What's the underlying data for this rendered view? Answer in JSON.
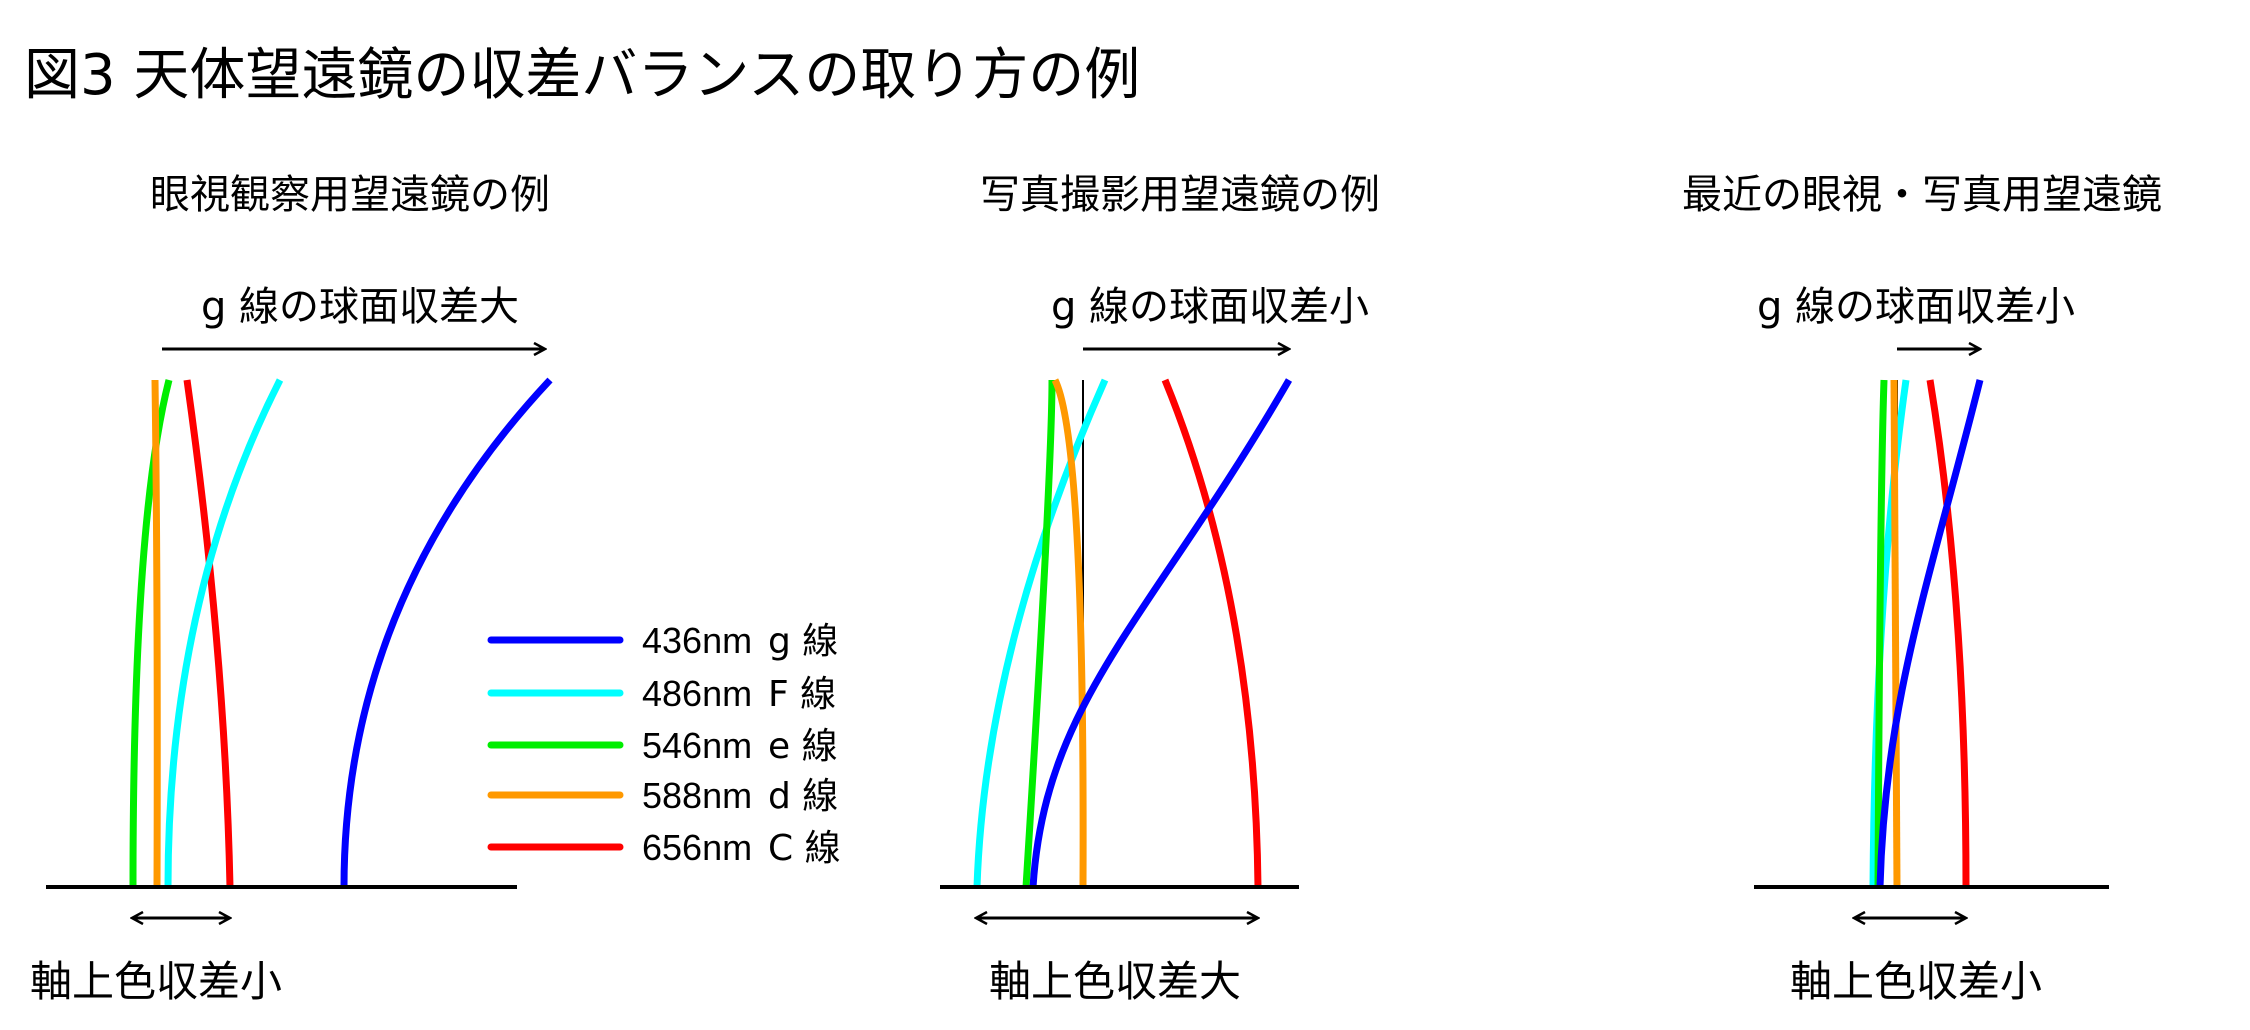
{
  "title": "図3 天体望遠鏡の収差バランスの取り方の例",
  "panels": [
    {
      "subtitle": "眼視観察用望遠鏡の例",
      "spherical_label": "g 線の球面収差大",
      "chromatic_label": "軸上色収差小"
    },
    {
      "subtitle": "写真撮影用望遠鏡の例",
      "spherical_label": "g 線の球面収差小",
      "chromatic_label": "軸上色収差大"
    },
    {
      "subtitle": "最近の眼視・写真用望遠鏡",
      "spherical_label": "g 線の球面収差小",
      "chromatic_label": "軸上色収差小"
    }
  ],
  "legend": [
    {
      "wavelength": "436nm",
      "line": "g 線",
      "color": "#0000ff"
    },
    {
      "wavelength": "486nm",
      "line": "F 線",
      "color": "#00ffff"
    },
    {
      "wavelength": "546nm",
      "line": "e 線",
      "color": "#00ee00"
    },
    {
      "wavelength": "588nm",
      "line": "d 線",
      "color": "#ff9900"
    },
    {
      "wavelength": "656nm",
      "line": "C 線",
      "color": "#ff0000"
    }
  ]
}
